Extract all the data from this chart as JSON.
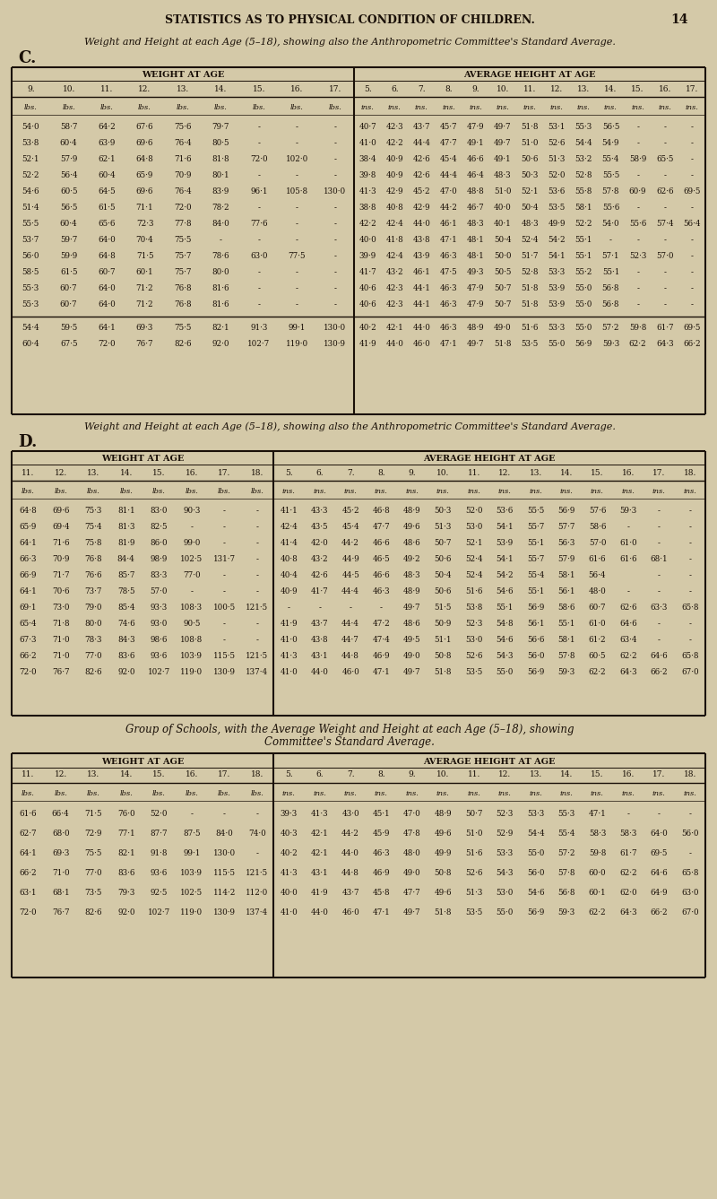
{
  "page_title": "STATISTICS AS TO PHYSICAL CONDITION OF CHILDREN.",
  "page_number": "14",
  "bg_color": "#d4c9a8",
  "text_color": "#1a1008",
  "subtitle1": "Weight and Height at each Age (5–18), showing also the Anthropometric Committee's Standard Average.",
  "label_C": "C.",
  "label_D": "D.",
  "label_group1": "Group of Schools, with the Average Weight and Height at each Age (5–18), showing",
  "label_group2": "Committee's Standard Average.",
  "table_C": {
    "weight_header": "WEIGHT AT AGE",
    "height_header": "AVERAGE HEIGHT AT AGE",
    "weight_ages": [
      "9.",
      "10.",
      "11.",
      "12.",
      "13.",
      "14.",
      "15.",
      "16.",
      "17."
    ],
    "height_ages": [
      "5.",
      "6.",
      "7.",
      "8.",
      "9.",
      "10.",
      "11.",
      "12.",
      "13.",
      "14.",
      "15.",
      "16.",
      "17."
    ],
    "rows": [
      {
        "w": [
          "54·0",
          "58·7",
          "64·2",
          "67·6",
          "75·6",
          "79·7",
          "-",
          "-",
          "-"
        ],
        "h": [
          "40·7",
          "42·3",
          "43·7",
          "45·7",
          "47·9",
          "49·7",
          "51·8",
          "53·1",
          "55·3",
          "56·5",
          "-",
          "-",
          "-"
        ]
      },
      {
        "w": [
          "53·8",
          "60·4",
          "63·9",
          "69·6",
          "76·4",
          "80·5",
          "-",
          "-",
          "-"
        ],
        "h": [
          "41·0",
          "42·2",
          "44·4",
          "47·7",
          "49·1",
          "49·7",
          "51·0",
          "52·6",
          "54·4",
          "54·9",
          "-",
          "-",
          "-"
        ]
      },
      {
        "w": [
          "52·1",
          "57·9",
          "62·1",
          "64·8",
          "71·6",
          "81·8",
          "72·0",
          "102·0",
          "-"
        ],
        "h": [
          "38·4",
          "40·9",
          "42·6",
          "45·4",
          "46·6",
          "49·1",
          "50·6",
          "51·3",
          "53·2",
          "55·4",
          "58·9",
          "65·5",
          "-"
        ]
      },
      {
        "w": [
          "52·2",
          "56·4",
          "60·4",
          "65·9",
          "70·9",
          "80·1",
          "-",
          "-",
          "-"
        ],
        "h": [
          "39·8",
          "40·9",
          "42·6",
          "44·4",
          "46·4",
          "48·3",
          "50·3",
          "52·0",
          "52·8",
          "55·5",
          "-",
          "-",
          "-"
        ]
      },
      {
        "w": [
          "54·6",
          "60·5",
          "64·5",
          "69·6",
          "76·4",
          "83·9",
          "96·1",
          "105·8",
          "130·0"
        ],
        "h": [
          "41·3",
          "42·9",
          "45·2",
          "47·0",
          "48·8",
          "51·0",
          "52·1",
          "53·6",
          "55·8",
          "57·8",
          "60·9",
          "62·6",
          "69·5"
        ]
      },
      {
        "w": [
          "51·4",
          "56·5",
          "61·5",
          "71·1",
          "72·0",
          "78·2",
          "-",
          "-",
          "-"
        ],
        "h": [
          "38·8",
          "40·8",
          "42·9",
          "44·2",
          "46·7",
          "40·0",
          "50·4",
          "53·5",
          "58·1",
          "55·6",
          "-",
          "-",
          "-"
        ]
      },
      {
        "w": [
          "55·5",
          "60·4",
          "65·6",
          "72·3",
          "77·8",
          "84·0",
          "77·6",
          "-",
          "-"
        ],
        "h": [
          "42·2",
          "42·4",
          "44·0",
          "46·1",
          "48·3",
          "40·1",
          "48·3",
          "49·9",
          "52·2",
          "54·0",
          "55·6",
          "57·4",
          "56·4"
        ]
      },
      {
        "w": [
          "53·7",
          "59·7",
          "64·0",
          "70·4",
          "75·5",
          "-",
          "-",
          "-",
          "-"
        ],
        "h": [
          "40·0",
          "41·8",
          "43·8",
          "47·1",
          "48·1",
          "50·4",
          "52·4",
          "54·2",
          "55·1",
          "-",
          "-",
          "-",
          "-"
        ]
      },
      {
        "w": [
          "56·0",
          "59·9",
          "64·8",
          "71·5",
          "75·7",
          "78·6",
          "63·0",
          "77·5",
          "-"
        ],
        "h": [
          "39·9",
          "42·4",
          "43·9",
          "46·3",
          "48·1",
          "50·0",
          "51·7",
          "54·1",
          "55·1",
          "57·1",
          "52·3",
          "57·0",
          "-"
        ]
      },
      {
        "w": [
          "58·5",
          "61·5",
          "60·7",
          "60·1",
          "75·7",
          "80·0",
          "-",
          "-",
          "-"
        ],
        "h": [
          "41·7",
          "43·2",
          "46·1",
          "47·5",
          "49·3",
          "50·5",
          "52·8",
          "53·3",
          "55·2",
          "55·1",
          "-",
          "-",
          "-"
        ]
      },
      {
        "w": [
          "55·3",
          "60·7",
          "64·0",
          "71·2",
          "76·8",
          "81·6",
          "-",
          "-",
          "-"
        ],
        "h": [
          "40·6",
          "42·3",
          "44·1",
          "46·3",
          "47·9",
          "50·7",
          "51·8",
          "53·9",
          "55·0",
          "56·8",
          "-",
          "-",
          "-"
        ]
      },
      {
        "w": [
          "55·3",
          "60·7",
          "64·0",
          "71·2",
          "76·8",
          "81·6",
          "-",
          "-",
          "-"
        ],
        "h": [
          "40·6",
          "42·3",
          "44·1",
          "46·3",
          "47·9",
          "50·7",
          "51·8",
          "53·9",
          "55·0",
          "56·8",
          "-",
          "-",
          "-"
        ]
      }
    ],
    "avg_rows": [
      {
        "w": [
          "54·4",
          "59·5",
          "64·1",
          "69·3",
          "75·5",
          "82·1",
          "91·3",
          "99·1",
          "130·0"
        ],
        "h": [
          "40·2",
          "42·1",
          "44·0",
          "46·3",
          "48·9",
          "49·0",
          "51·6",
          "53·3",
          "55·0",
          "57·2",
          "59·8",
          "61·7",
          "69·5"
        ]
      },
      {
        "w": [
          "60·4",
          "67·5",
          "72·0",
          "76·7",
          "82·6",
          "92·0",
          "102·7",
          "119·0",
          "130·9"
        ],
        "h": [
          "41·9",
          "44·0",
          "46·0",
          "47·1",
          "49·7",
          "51·8",
          "53·5",
          "55·0",
          "56·9",
          "59·3",
          "62·2",
          "64·3",
          "66·2"
        ]
      }
    ]
  },
  "table_D": {
    "weight_header": "WEIGHT AT AGE",
    "height_header": "AVERAGE HEIGHT AT AGE",
    "weight_ages": [
      "11.",
      "12.",
      "13.",
      "14.",
      "15.",
      "16.",
      "17.",
      "18."
    ],
    "height_ages": [
      "5.",
      "6.",
      "7.",
      "8.",
      "9.",
      "10.",
      "11.",
      "12.",
      "13.",
      "14.",
      "15.",
      "16.",
      "17.",
      "18."
    ],
    "rows": [
      {
        "w": [
          "64·8",
          "69·6",
          "75·3",
          "81·1",
          "83·0",
          "90·3",
          "-",
          "-"
        ],
        "h": [
          "41·1",
          "43·3",
          "45·2",
          "46·8",
          "48·9",
          "50·3",
          "52·0",
          "53·6",
          "55·5",
          "56·9",
          "57·6",
          "59·3",
          "-",
          "-"
        ]
      },
      {
        "w": [
          "65·9",
          "69·4",
          "75·4",
          "81·3",
          "82·5",
          "-",
          "-",
          "-"
        ],
        "h": [
          "42·4",
          "43·5",
          "45·4",
          "47·7",
          "49·6",
          "51·3",
          "53·0",
          "54·1",
          "55·7",
          "57·7",
          "58·6",
          "-",
          "-",
          "-"
        ]
      },
      {
        "w": [
          "64·1",
          "71·6",
          "75·8",
          "81·9",
          "86·0",
          "99·0",
          "-",
          "-"
        ],
        "h": [
          "41·4",
          "42·0",
          "44·2",
          "46·6",
          "48·6",
          "50·7",
          "52·1",
          "53·9",
          "55·1",
          "56·3",
          "57·0",
          "61·0",
          "-",
          "-"
        ]
      },
      {
        "w": [
          "66·3",
          "70·9",
          "76·8",
          "84·4",
          "98·9",
          "102·5",
          "131·7",
          "-"
        ],
        "h": [
          "40·8",
          "43·2",
          "44·9",
          "46·5",
          "49·2",
          "50·6",
          "52·4",
          "54·1",
          "55·7",
          "57·9",
          "61·6",
          "61·6",
          "68·1",
          "-"
        ]
      },
      {
        "w": [
          "66·9",
          "71·7",
          "76·6",
          "85·7",
          "83·3",
          "77·0",
          "-",
          "-"
        ],
        "h": [
          "40·4",
          "42·6",
          "44·5",
          "46·6",
          "48·3",
          "50·4",
          "52·4",
          "54·2",
          "55·4",
          "58·1",
          "56·4",
          "",
          "-",
          "-"
        ]
      },
      {
        "w": [
          "64·1",
          "70·6",
          "73·7",
          "78·5",
          "57·0",
          "-",
          "-",
          "-"
        ],
        "h": [
          "40·9",
          "41·7",
          "44·4",
          "46·3",
          "48·9",
          "50·6",
          "51·6",
          "54·6",
          "55·1",
          "56·1",
          "48·0",
          "-",
          "-",
          "-"
        ]
      },
      {
        "w": [
          "69·1",
          "73·0",
          "79·0",
          "85·4",
          "93·3",
          "108·3",
          "100·5",
          "121·5"
        ],
        "h": [
          "-",
          "-",
          "-",
          "-",
          "49·7",
          "51·5",
          "53·8",
          "55·1",
          "56·9",
          "58·6",
          "60·7",
          "62·6",
          "63·3",
          "65·8"
        ]
      },
      {
        "w": [
          "65·4",
          "71·8",
          "80·0",
          "74·6",
          "93·0",
          "90·5",
          "-",
          "-"
        ],
        "h": [
          "41·9",
          "43·7",
          "44·4",
          "47·2",
          "48·6",
          "50·9",
          "52·3",
          "54·8",
          "56·1",
          "55·1",
          "61·0",
          "64·6",
          "-",
          "-"
        ]
      },
      {
        "w": [
          "67·3",
          "71·0",
          "78·3",
          "84·3",
          "98·6",
          "108·8",
          "-",
          "-"
        ],
        "h": [
          "41·0",
          "43·8",
          "44·7",
          "47·4",
          "49·5",
          "51·1",
          "53·0",
          "54·6",
          "56·6",
          "58·1",
          "61·2",
          "63·4",
          "-",
          "-"
        ]
      },
      {
        "w": [
          "66·2",
          "71·0",
          "77·0",
          "83·6",
          "93·6",
          "103·9",
          "115·5",
          "121·5"
        ],
        "h": [
          "41·3",
          "43·1",
          "44·8",
          "46·9",
          "49·0",
          "50·8",
          "52·6",
          "54·3",
          "56·0",
          "57·8",
          "60·5",
          "62·2",
          "64·6",
          "65·8"
        ]
      },
      {
        "w": [
          "72·0",
          "76·7",
          "82·6",
          "92·0",
          "102·7",
          "119·0",
          "130·9",
          "137·4"
        ],
        "h": [
          "41·0",
          "44·0",
          "46·0",
          "47·1",
          "49·7",
          "51·8",
          "53·5",
          "55·0",
          "56·9",
          "59·3",
          "62·2",
          "64·3",
          "66·2",
          "67·0"
        ]
      }
    ]
  },
  "table_G": {
    "weight_header": "WEIGHT AT AGE",
    "height_header": "AVERAGE HEIGHT AT AGE",
    "weight_ages": [
      "11.",
      "12.",
      "13.",
      "14.",
      "15.",
      "16.",
      "17.",
      "18."
    ],
    "height_ages": [
      "5.",
      "6.",
      "7.",
      "8.",
      "9.",
      "10.",
      "11.",
      "12.",
      "13.",
      "14.",
      "15.",
      "16.",
      "17.",
      "18."
    ],
    "rows": [
      {
        "w": [
          "61·6",
          "66·4",
          "71·5",
          "76·0",
          "52·0",
          "-",
          "-",
          "-"
        ],
        "h": [
          "39·3",
          "41·3",
          "43·0",
          "45·1",
          "47·0",
          "48·9",
          "50·7",
          "52·3",
          "53·3",
          "55·3",
          "47·1",
          "-",
          "-",
          "-"
        ]
      },
      {
        "w": [
          "62·7",
          "68·0",
          "72·9",
          "77·1",
          "87·7",
          "87·5",
          "84·0",
          "74·0"
        ],
        "h": [
          "40·3",
          "42·1",
          "44·2",
          "45·9",
          "47·8",
          "49·6",
          "51·0",
          "52·9",
          "54·4",
          "55·4",
          "58·3",
          "58·3",
          "64·0",
          "56·0"
        ]
      },
      {
        "w": [
          "64·1",
          "69·3",
          "75·5",
          "82·1",
          "91·8",
          "99·1",
          "130·0",
          "-"
        ],
        "h": [
          "40·2",
          "42·1",
          "44·0",
          "46·3",
          "48·0",
          "49·9",
          "51·6",
          "53·3",
          "55·0",
          "57·2",
          "59·8",
          "61·7",
          "69·5",
          "-"
        ]
      },
      {
        "w": [
          "66·2",
          "71·0",
          "77·0",
          "83·6",
          "93·6",
          "103·9",
          "115·5",
          "121·5"
        ],
        "h": [
          "41·3",
          "43·1",
          "44·8",
          "46·9",
          "49·0",
          "50·8",
          "52·6",
          "54·3",
          "56·0",
          "57·8",
          "60·0",
          "62·2",
          "64·6",
          "65·8"
        ]
      },
      {
        "w": [
          "63·1",
          "68·1",
          "73·5",
          "79·3",
          "92·5",
          "102·5",
          "114·2",
          "112·0"
        ],
        "h": [
          "40·0",
          "41·9",
          "43·7",
          "45·8",
          "47·7",
          "49·6",
          "51·3",
          "53·0",
          "54·6",
          "56·8",
          "60·1",
          "62·0",
          "64·9",
          "63·0"
        ]
      },
      {
        "w": [
          "72·0",
          "76·7",
          "82·6",
          "92·0",
          "102·7",
          "119·0",
          "130·9",
          "137·4"
        ],
        "h": [
          "41·0",
          "44·0",
          "46·0",
          "47·1",
          "49·7",
          "51·8",
          "53·5",
          "55·0",
          "56·9",
          "59·3",
          "62·2",
          "64·3",
          "66·2",
          "67·0"
        ]
      }
    ]
  }
}
